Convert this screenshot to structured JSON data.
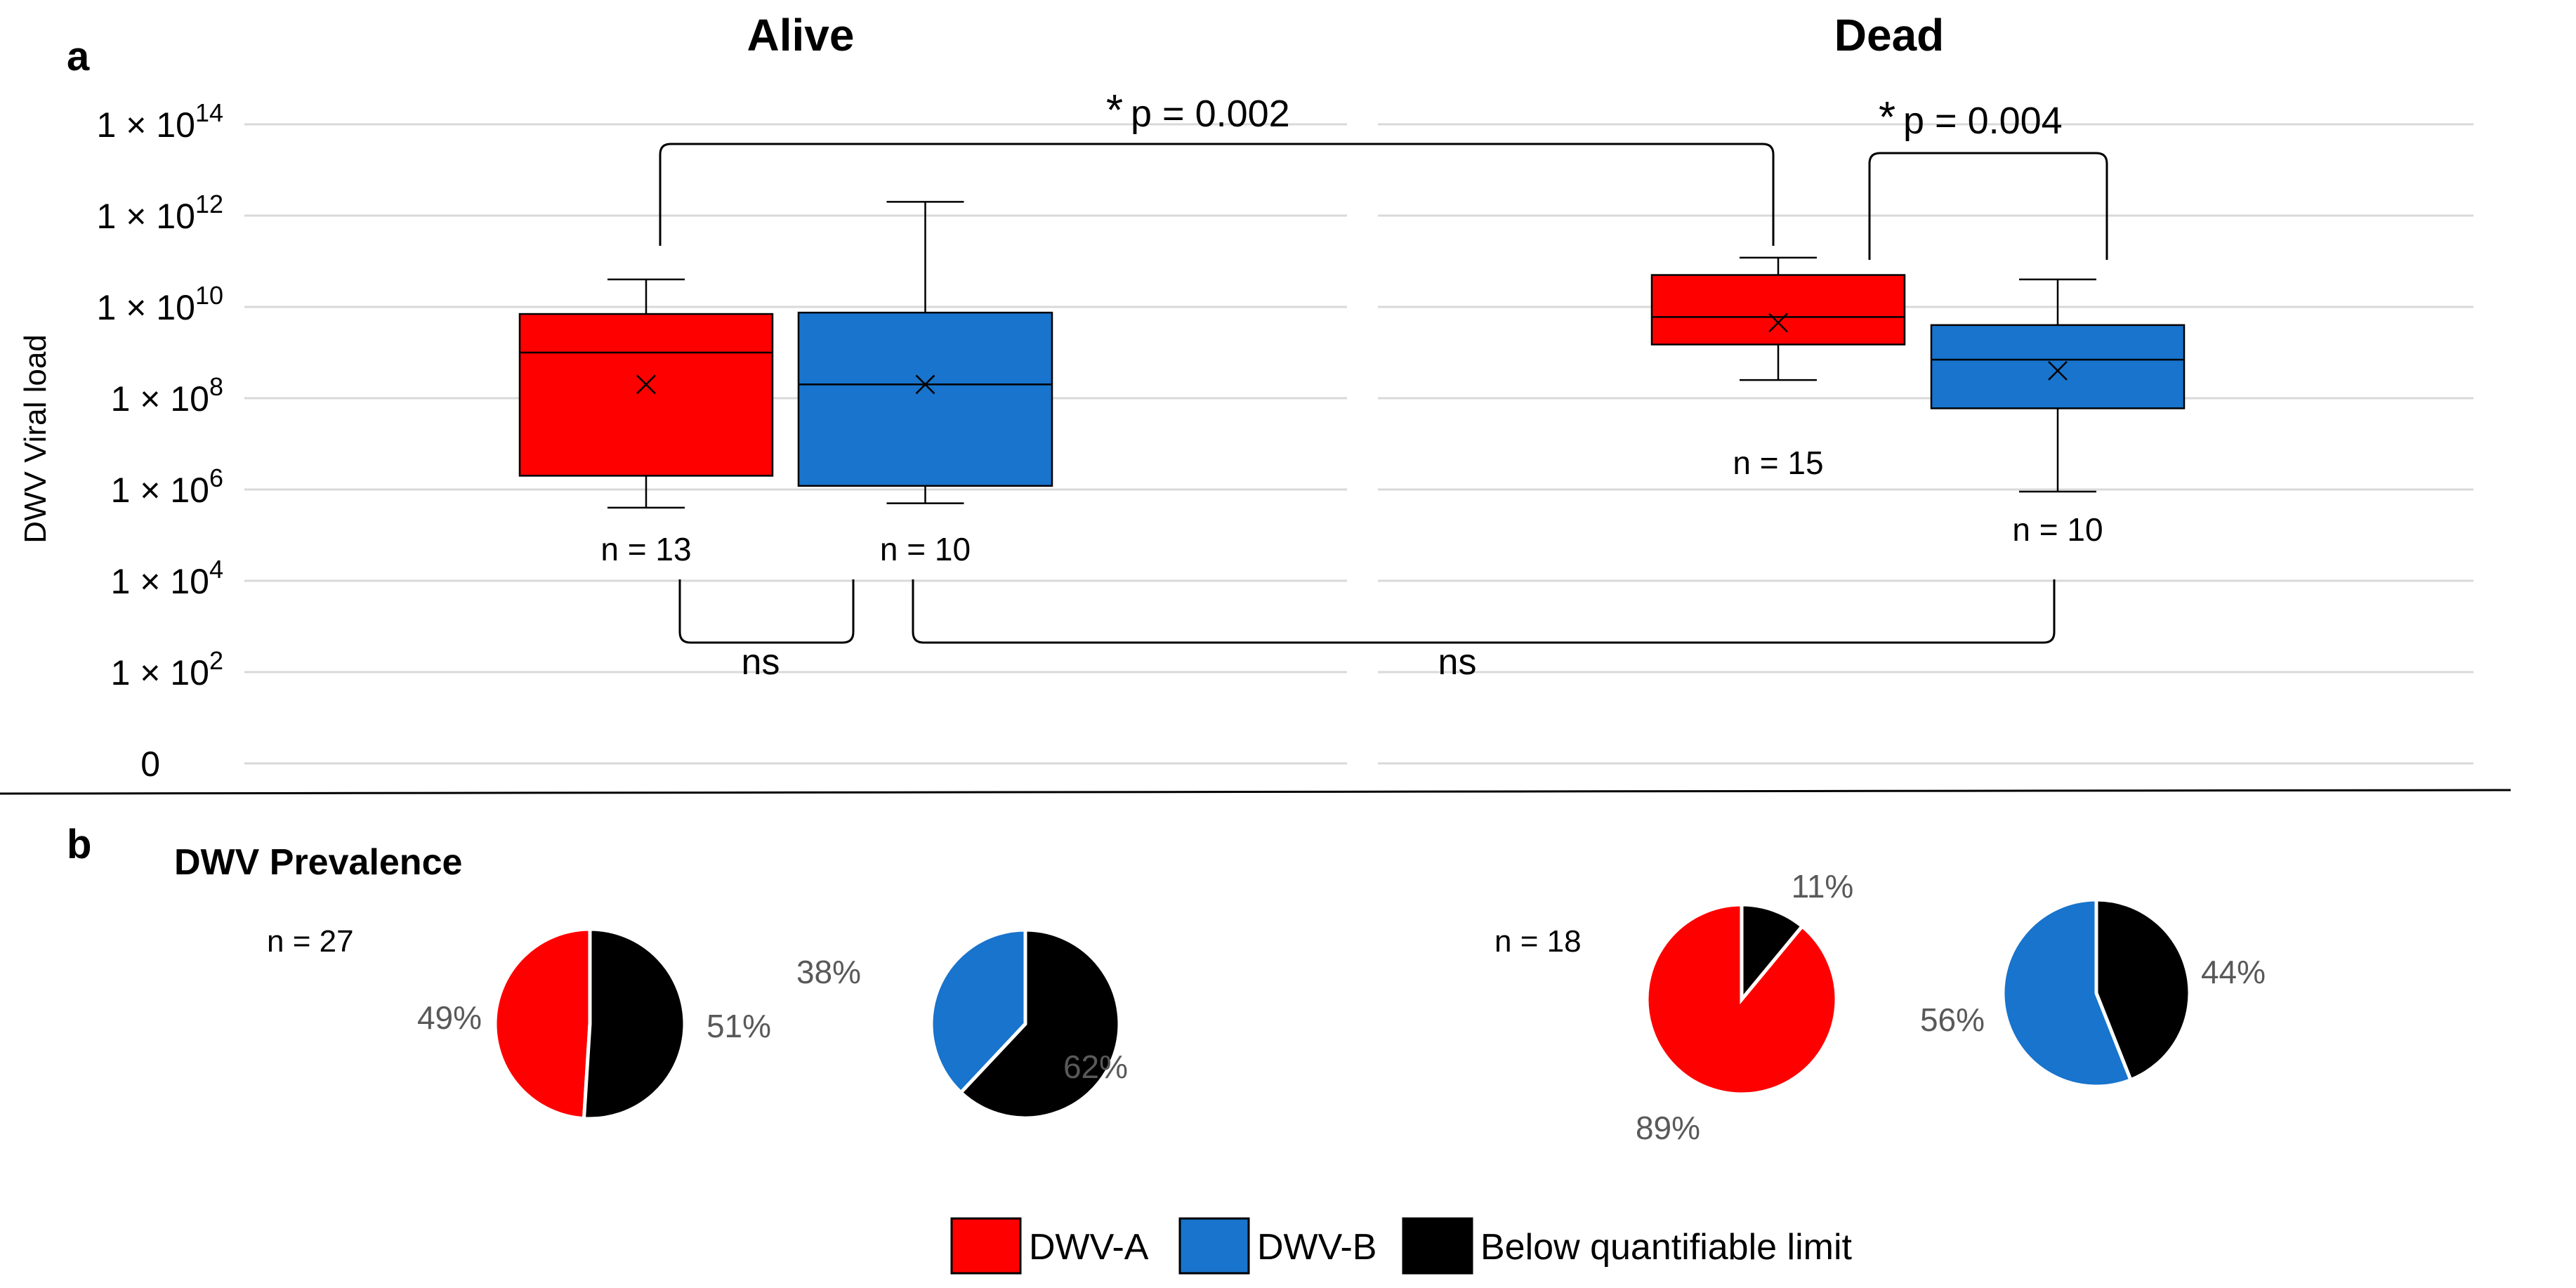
{
  "panels": {
    "a": "a",
    "b": "b"
  },
  "colors": {
    "dwv_a": "#ff0000",
    "dwv_b": "#1874cd",
    "below": "#000000",
    "grid": "#d9d9d9",
    "pct_text": "#595959"
  },
  "chart_data": [
    {
      "type": "box",
      "panel": "a",
      "ylabel": "DWV Viral load",
      "y_scale": "log",
      "y_ticks": [
        {
          "value": 0,
          "base": "0",
          "exp": ""
        },
        {
          "value": 100,
          "base": "1 × 10",
          "exp": "2"
        },
        {
          "value": 10000,
          "base": "1 × 10",
          "exp": "4"
        },
        {
          "value": 1000000,
          "base": "1 × 10",
          "exp": "6"
        },
        {
          "value": 100000000,
          "base": "1 × 10",
          "exp": "8"
        },
        {
          "value": 10000000000,
          "base": "1 × 10",
          "exp": "10"
        },
        {
          "value": 1000000000000,
          "base": "1 × 10",
          "exp": "12"
        },
        {
          "value": 100000000000000,
          "base": "1 × 10",
          "exp": "14"
        }
      ],
      "grid": true,
      "groups": [
        {
          "name": "Alive",
          "boxes": [
            {
              "series": "DWV-A",
              "min": 400000,
              "q1": 2000000,
              "median": 1000000000,
              "q3": 7000000000,
              "max": 40000000000,
              "mean": 200000000,
              "n_label": "n = 13"
            },
            {
              "series": "DWV-B",
              "min": 500000,
              "q1": 1200000,
              "median": 200000000,
              "q3": 7500000000,
              "max": 2000000000000,
              "mean": 200000000,
              "n_label": "n = 10"
            }
          ]
        },
        {
          "name": "Dead",
          "boxes": [
            {
              "series": "DWV-A",
              "min": 250000000,
              "q1": 1500000000,
              "median": 6000000000,
              "q3": 50000000000,
              "max": 120000000000,
              "mean": 4500000000,
              "n_label": "n = 15"
            },
            {
              "series": "DWV-B",
              "min": 900000,
              "q1": 60000000,
              "median": 700000000,
              "q3": 4000000000,
              "max": 40000000000,
              "mean": 400000000,
              "n_label": "n = 10"
            }
          ]
        }
      ],
      "annotations": [
        {
          "label": "p = 0.002",
          "star": "*"
        },
        {
          "label": "p = 0.004",
          "star": "*"
        },
        {
          "label": "ns"
        },
        {
          "label": "ns"
        }
      ]
    },
    {
      "type": "pie",
      "panel": "b",
      "title": "DWV Prevalence",
      "groups": [
        {
          "n_label": "n = 27",
          "pies": [
            {
              "series": "DWV-A",
              "positive": 49,
              "below": 51,
              "labels": [
                "49%",
                "51%"
              ]
            },
            {
              "series": "DWV-B",
              "positive": 38,
              "below": 62,
              "labels": [
                "38%",
                "62%"
              ]
            }
          ]
        },
        {
          "n_label": "n = 18",
          "pies": [
            {
              "series": "DWV-A",
              "positive": 89,
              "below": 11,
              "labels": [
                "89%",
                "11%"
              ]
            },
            {
              "series": "DWV-B",
              "positive": 56,
              "below": 44,
              "labels": [
                "56%",
                "44%"
              ]
            }
          ]
        }
      ],
      "legend": [
        {
          "name": "DWV-A",
          "color": "#ff0000"
        },
        {
          "name": "DWV-B",
          "color": "#1874cd"
        },
        {
          "name": "Below quantifiable limit",
          "color": "#000000"
        }
      ]
    }
  ]
}
